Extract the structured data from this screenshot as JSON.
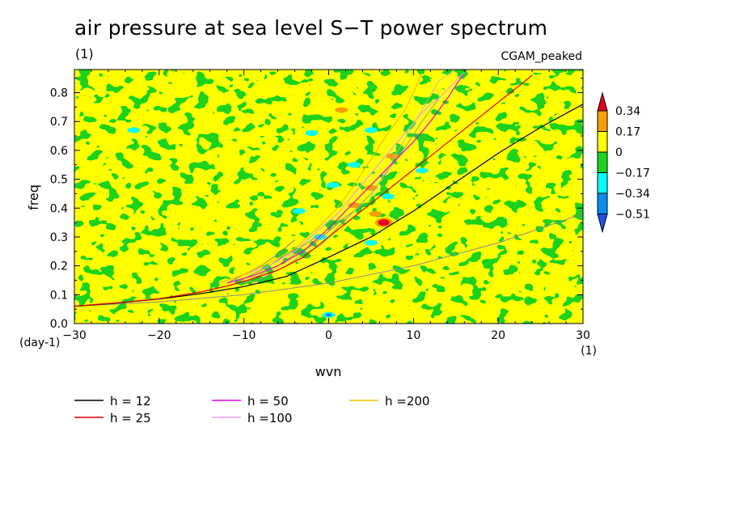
{
  "header": {
    "title": "air pressure at sea level S−T power spectrum",
    "subtitle": "(1)",
    "model": "CGAM_peaked"
  },
  "chart_data": {
    "type": "heatmap",
    "title": "air pressure at sea level S−T power spectrum",
    "xlabel": "wvn",
    "ylabel": "freq",
    "xunit": "(1)",
    "yunit": "(day-1)",
    "xlim": [
      -30,
      30
    ],
    "ylim": [
      0,
      0.88
    ],
    "xticks": [
      -30,
      -20,
      -10,
      0,
      10,
      20,
      30
    ],
    "yticks": [
      0.0,
      0.1,
      0.2,
      0.3,
      0.4,
      0.5,
      0.6,
      0.7,
      0.8
    ],
    "colorbar": {
      "labels": [
        "0.34",
        "0.17",
        "0",
        "−0.17",
        "−0.34",
        "−0.51"
      ],
      "colors": [
        "#e8001e",
        "#f5a000",
        "#ffff00",
        "#1fd21f",
        "#00ffff",
        "#0a8cf0",
        "#1e50f0"
      ]
    },
    "background_fill": "#ffff00",
    "field_features": [
      {
        "value": 0.34,
        "x": 6.5,
        "y": 0.35
      },
      {
        "value": 0.17,
        "x": 7.5,
        "y": 0.58
      },
      {
        "value": 0.17,
        "x": 5,
        "y": 0.47
      },
      {
        "value": 0.17,
        "x": 3,
        "y": 0.41
      },
      {
        "value": 0.17,
        "x": 1.5,
        "y": 0.74
      },
      {
        "value": 0.17,
        "x": 5.5,
        "y": 0.38
      },
      {
        "value": -0.34,
        "x": 5,
        "y": 0.67
      },
      {
        "value": -0.34,
        "x": 3,
        "y": 0.55
      },
      {
        "value": -0.34,
        "x": 0.5,
        "y": 0.48
      },
      {
        "value": -0.34,
        "x": 7,
        "y": 0.44
      },
      {
        "value": -0.34,
        "x": -3.5,
        "y": 0.39
      },
      {
        "value": -0.34,
        "x": -2,
        "y": 0.66
      },
      {
        "value": -0.34,
        "x": -23,
        "y": 0.67
      },
      {
        "value": -0.34,
        "x": 11,
        "y": 0.53
      },
      {
        "value": -0.34,
        "x": -1,
        "y": 0.3
      },
      {
        "value": -0.34,
        "x": 0,
        "y": 0.03
      },
      {
        "value": -0.51,
        "x": 0,
        "y": 0.03
      },
      {
        "value": -0.34,
        "x": 5,
        "y": 0.28
      }
    ],
    "series": [
      {
        "name": "h = 12",
        "color": "#000000",
        "x": [
          -30,
          -25,
          -20,
          -15,
          -10,
          -5,
          0,
          5,
          10,
          15,
          20,
          25,
          30
        ],
        "y": [
          0.06,
          0.071,
          0.085,
          0.104,
          0.128,
          0.163,
          0.23,
          0.3,
          0.39,
          0.49,
          0.59,
          0.68,
          0.76
        ]
      },
      {
        "name": "h = 25",
        "color": "#e00000",
        "x": [
          -30,
          -25,
          -20,
          -15,
          -12,
          -9,
          -6,
          -3,
          0,
          3,
          6,
          9,
          12,
          15,
          18,
          21,
          24
        ],
        "y": [
          0.06,
          0.072,
          0.086,
          0.11,
          0.13,
          0.155,
          0.185,
          0.23,
          0.3,
          0.37,
          0.44,
          0.51,
          0.58,
          0.65,
          0.72,
          0.79,
          0.86
        ]
      },
      {
        "name": "h = 50",
        "color": "#e000e0",
        "x": [
          -12,
          -9,
          -6,
          -3,
          0,
          2,
          4,
          6,
          8,
          10,
          12,
          14,
          16
        ],
        "y": [
          0.14,
          0.165,
          0.2,
          0.25,
          0.33,
          0.39,
          0.45,
          0.51,
          0.57,
          0.63,
          0.7,
          0.78,
          0.87
        ]
      },
      {
        "name": "h =100",
        "color": "#e8a0e8",
        "x": [
          -13,
          -10,
          -7,
          -4,
          -1,
          1,
          3,
          5,
          7,
          9,
          11,
          12,
          13,
          14,
          15,
          16
        ],
        "y": [
          0.14,
          0.17,
          0.2,
          0.25,
          0.33,
          0.38,
          0.45,
          0.52,
          0.59,
          0.66,
          0.73,
          0.76,
          0.78,
          0.81,
          0.84,
          0.87
        ]
      },
      {
        "name": "h =200",
        "color": "#f0c000",
        "x": [
          -13,
          -10,
          -7,
          -4,
          -1,
          1,
          3,
          5,
          7,
          9,
          10,
          11
        ],
        "y": [
          0.14,
          0.17,
          0.21,
          0.26,
          0.34,
          0.4,
          0.48,
          0.57,
          0.66,
          0.74,
          0.8,
          0.87
        ]
      }
    ],
    "extra_lines": [
      {
        "color": "#888888",
        "x": [
          -12,
          -10,
          -8,
          -6,
          -4
        ],
        "y": [
          0.14,
          0.17,
          0.2,
          0.24,
          0.29
        ]
      },
      {
        "color": "#888888",
        "x": [
          -11,
          -9,
          -7,
          -5,
          -3,
          -1
        ],
        "y": [
          0.14,
          0.17,
          0.2,
          0.24,
          0.27,
          0.31
        ]
      },
      {
        "color": "#888888",
        "x": [
          -10,
          -8,
          -6,
          -4,
          -2,
          0,
          2,
          4
        ],
        "y": [
          0.14,
          0.17,
          0.2,
          0.24,
          0.27,
          0.32,
          0.37,
          0.41
        ]
      },
      {
        "color": "#999999",
        "x": [
          -9,
          -7,
          -5,
          -3,
          -1,
          1,
          3,
          5,
          7,
          9,
          11,
          13
        ],
        "y": [
          0.14,
          0.17,
          0.2,
          0.24,
          0.27,
          0.33,
          0.39,
          0.45,
          0.53,
          0.61,
          0.7,
          0.78
        ]
      },
      {
        "color": "#c0c0a0",
        "x": [
          5,
          7,
          9,
          11,
          13,
          15
        ],
        "y": [
          0.44,
          0.54,
          0.64,
          0.74,
          0.84,
          0.88
        ]
      },
      {
        "color": "#8a8a8a",
        "x": [
          -30,
          -20,
          -10,
          0,
          10,
          20,
          30
        ],
        "y": [
          0.06,
          0.075,
          0.1,
          0.14,
          0.2,
          0.28,
          0.38
        ]
      }
    ],
    "legend": [
      "h = 12",
      "h = 25",
      "h = 50",
      "h =100",
      "h =200"
    ]
  }
}
